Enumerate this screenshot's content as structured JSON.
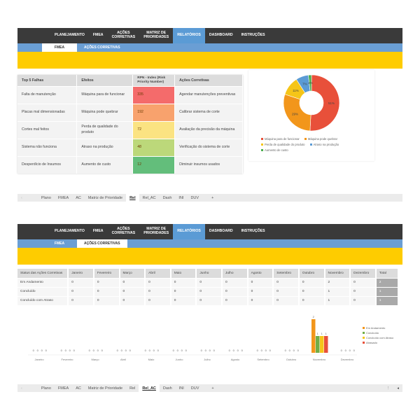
{
  "nav": {
    "items": [
      "PLANEJAMENTO",
      "FMEA",
      "AÇÕES\nCORRETIVAS",
      "MATRIZ DE\nPRIORIDADES",
      "RELATÓRIOS",
      "DASHBOARD",
      "INSTRUÇÕES"
    ],
    "active_index": 4
  },
  "panel1": {
    "subnav": [
      "FMEA",
      "AÇÕES CORRETIVAS"
    ],
    "subnav_active": 0,
    "table": {
      "headers": [
        "Top 5 Falhas",
        "Efeitos",
        "RPN - Index (Risk Priority Number)",
        "Ações Corretivas"
      ],
      "rows": [
        {
          "falha": "Falta de manutenção",
          "efeito": "Máquina para de funcionar",
          "rpn": "335",
          "acao": "Agendar manutenções preventivas",
          "color": "#f46b6b"
        },
        {
          "falha": "Placas mal dimensionadas",
          "efeito": "Máquina pode quebrar",
          "rpn": "192",
          "acao": "Calibrar sistema de corte",
          "color": "#f8a26d"
        },
        {
          "falha": "Cortes mal feitos",
          "efeito": "Perda de qualidade do produto",
          "rpn": "72",
          "acao": "Avaliação da precisão da máquina",
          "color": "#fbe382"
        },
        {
          "falha": "Sistema não funciona",
          "efeito": "Atraso na produção",
          "rpn": "48",
          "acao": "Verificação do sistema de corte",
          "color": "#bcd87a"
        },
        {
          "falha": "Desperdício de Insumos",
          "efeito": "Aumento de custo",
          "rpn": "12",
          "acao": "Diminuir insumos usados",
          "color": "#63be7b"
        }
      ]
    },
    "sheet_tabs": [
      "Plano",
      "FMEA",
      "AC",
      "Matriz de Prioridade",
      "Rel",
      "Rel_AC",
      "Dash",
      "INI",
      "DUV",
      "+"
    ],
    "sheet_active": 4
  },
  "panel2": {
    "subnav": [
      "FMEA",
      "AÇÕES CORRETIVAS"
    ],
    "subnav_active": 1,
    "table": {
      "headers": [
        "Status das Ações Corretivas",
        "Janeiro",
        "Fevereiro",
        "Março",
        "Abril",
        "Maio",
        "Junho",
        "Julho",
        "Agosto",
        "Setembro",
        "Outubro",
        "Novembro",
        "Dezembro",
        "Total"
      ],
      "rows": [
        {
          "label": "Em Andamento",
          "values": [
            "0",
            "0",
            "0",
            "0",
            "0",
            "0",
            "0",
            "0",
            "0",
            "0",
            "2",
            "0"
          ],
          "total": "2"
        },
        {
          "label": "Concluído",
          "values": [
            "0",
            "0",
            "0",
            "0",
            "0",
            "0",
            "0",
            "0",
            "0",
            "0",
            "1",
            "0"
          ],
          "total": "1"
        },
        {
          "label": "Concluído com Atraso",
          "values": [
            "0",
            "0",
            "0",
            "0",
            "0",
            "0",
            "0",
            "0",
            "0",
            "0",
            "1",
            "0"
          ],
          "total": "1"
        }
      ]
    },
    "sheet_tabs": [
      "Plano",
      "FMEA",
      "AC",
      "Matriz de Prioridade",
      "Rel",
      "Rel_AC",
      "Dash",
      "INI",
      "DUV",
      "+"
    ],
    "sheet_active": 5
  },
  "chart_data": [
    {
      "type": "pie",
      "title": "",
      "categories": [
        "Máquina para de funcionar",
        "Máquina pode quebrar",
        "Perda de qualidade do produto",
        "Atraso na produção",
        "Aumento de custo"
      ],
      "values": [
        335,
        192,
        72,
        48,
        12
      ],
      "labels": [
        "51%",
        "29%",
        "11%",
        "7%",
        "2%"
      ],
      "colors": [
        "#e8503a",
        "#f2961b",
        "#f5c518",
        "#5b9bd5",
        "#4caf50"
      ],
      "donut": true,
      "legend_position": "bottom"
    },
    {
      "type": "bar",
      "title": "",
      "categories": [
        "Janeiro",
        "Fevereiro",
        "Março",
        "Abril",
        "Maio",
        "Junho",
        "Julho",
        "Agosto",
        "Setembro",
        "Outubro",
        "Novembro",
        "Dezembro"
      ],
      "series": [
        {
          "name": "Em Andamento",
          "color": "#f2961b",
          "values": [
            0,
            0,
            0,
            0,
            0,
            0,
            0,
            0,
            0,
            0,
            2,
            0
          ]
        },
        {
          "name": "Concluído",
          "color": "#70ad47",
          "values": [
            0,
            0,
            0,
            0,
            0,
            0,
            0,
            0,
            0,
            0,
            1,
            0
          ]
        },
        {
          "name": "Concluído com Atraso",
          "color": "#f5c518",
          "values": [
            0,
            0,
            0,
            0,
            0,
            0,
            0,
            0,
            0,
            0,
            1,
            0
          ]
        },
        {
          "name": "Atrasado",
          "color": "#e8503a",
          "values": [
            0,
            0,
            0,
            0,
            0,
            0,
            0,
            0,
            0,
            0,
            1,
            0
          ]
        }
      ],
      "legend_position": "right",
      "grid": false
    }
  ]
}
